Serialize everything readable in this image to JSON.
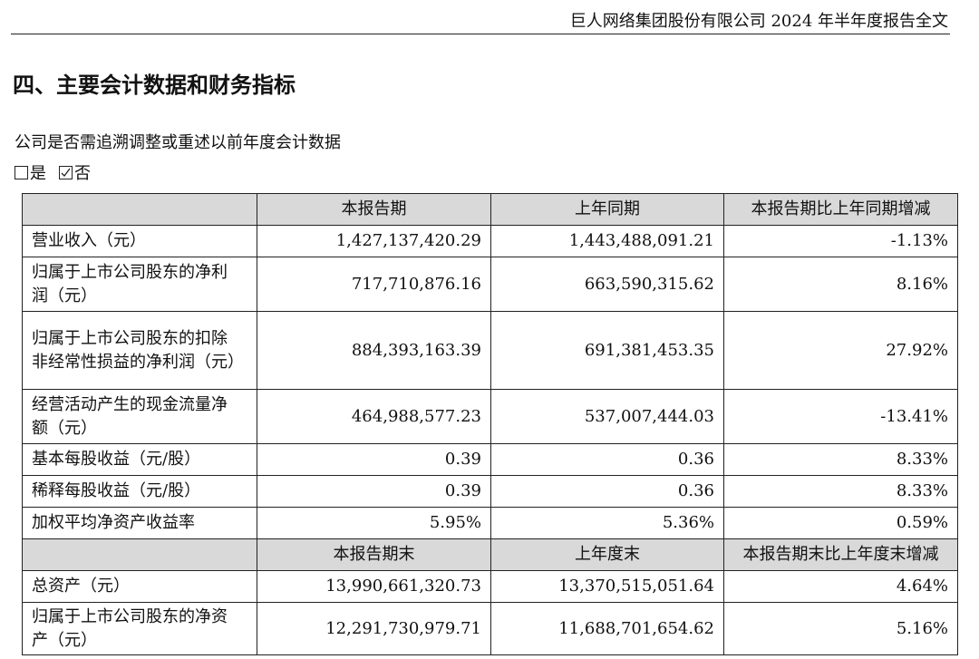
{
  "header": {
    "title": "巨人网络集团股份有限公司 2024 年半年度报告全文"
  },
  "section": {
    "title": "四、主要会计数据和财务指标"
  },
  "question": {
    "text": "公司是否需追溯调整或重述以前年度会计数据",
    "options": [
      "是",
      "否"
    ]
  },
  "table": {
    "sections": [
      {
        "columns": [
          "本报告期",
          "上年同期",
          "本报告期比上年同期增减"
        ],
        "rows": [
          [
            "营业收入（元）",
            "1,427,137,420.29",
            "1,443,488,091.21",
            "-1.13%"
          ],
          [
            "归属于上市公司股东的净利润（元）",
            "717,710,876.16",
            "663,590,315.62",
            "8.16%"
          ],
          [
            "归属于上市公司股东的扣除非经常性损益的净利润（元）",
            "884,393,163.39",
            "691,381,453.35",
            "27.92%"
          ],
          [
            "经营活动产生的现金流量净额（元）",
            "464,988,577.23",
            "537,007,444.03",
            "-13.41%"
          ],
          [
            "基本每股收益（元/股）",
            "0.39",
            "0.36",
            "8.33%"
          ],
          [
            "稀释每股收益（元/股）",
            "0.39",
            "0.36",
            "8.33%"
          ],
          [
            "加权平均净资产收益率",
            "5.95%",
            "5.36%",
            "0.59%"
          ]
        ]
      },
      {
        "columns": [
          "本报告期末",
          "上年度末",
          "本报告期末比上年度末增减"
        ],
        "rows": [
          [
            "总资产（元）",
            "13,990,661,320.73",
            "13,370,515,051.64",
            "4.64%"
          ],
          [
            "归属于上市公司股东的净资产（元）",
            "12,291,730,979.71",
            "11,688,701,654.62",
            "5.16%"
          ]
        ]
      }
    ]
  }
}
